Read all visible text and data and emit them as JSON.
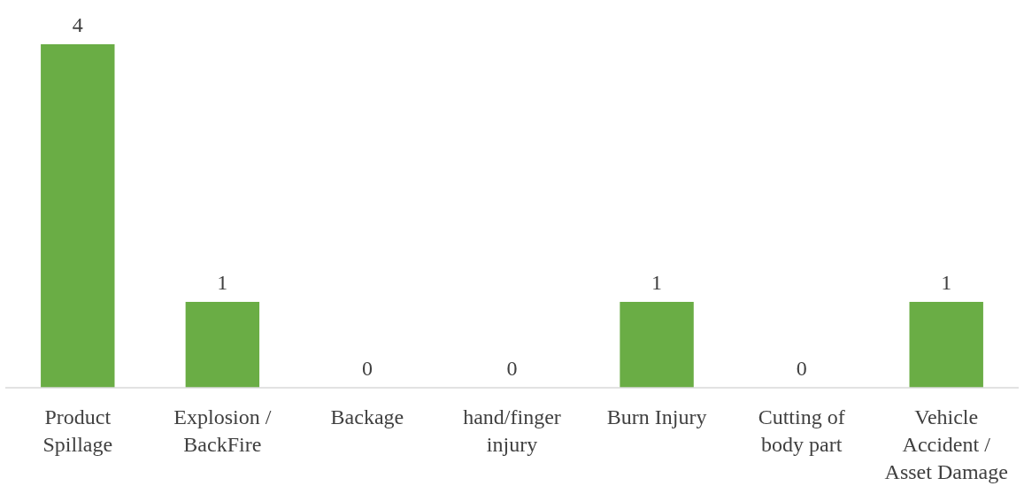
{
  "chart_data": {
    "type": "bar",
    "categories": [
      "Product Spillage",
      "Explosion / BackFire",
      "Backage",
      "hand/finger injury",
      "Burn Injury",
      "Cutting of body part",
      "Vehicle Accident / Asset Damage"
    ],
    "values": [
      4,
      1,
      0,
      0,
      1,
      0,
      1
    ],
    "color": "#6aad45",
    "data_labels": true
  }
}
